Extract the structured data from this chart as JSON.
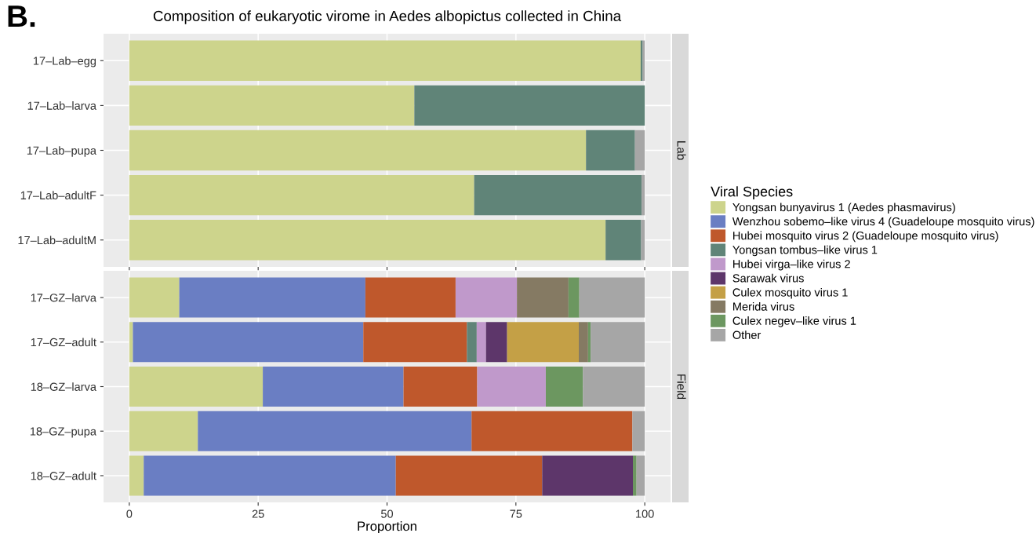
{
  "chart_data": [
    {
      "type": "bar",
      "orientation": "horizontal",
      "stacked": true,
      "title": "Composition of eukaryotic virome in Aedes albopictus collected in China",
      "y2label": "Lab",
      "annotations": [
        "B."
      ],
      "legend_title": "Viral Species",
      "legend": "right",
      "grid": true,
      "tick_labels": "y",
      "xlim": [
        -5,
        105
      ],
      "xticks": [
        0,
        25,
        50,
        75,
        100
      ],
      "categories": [
        "17–Lab–egg",
        "17–Lab–larva",
        "17–Lab–pupa",
        "17–Lab–adultF",
        "17–Lab–adultM"
      ],
      "series": [
        {
          "name": "Yongsan bunyavirus 1 (Aedes phasmavirus)",
          "color": "#cdd48c",
          "values": [
            99.2,
            55.3,
            88.6,
            66.9,
            92.4
          ]
        },
        {
          "name": "Wenzhou sobemo–like virus 4 (Guadeloupe mosquito virus)",
          "color": "#6a7ec3",
          "values": [
            null,
            null,
            null,
            null,
            null
          ]
        },
        {
          "name": "Hubei mosquito virus 2 (Guadeloupe mosquito virus)",
          "color": "#bf582c",
          "values": [
            null,
            null,
            null,
            null,
            null
          ]
        },
        {
          "name": "Yongsan tombus–like virus 1",
          "color": "#608478",
          "values": [
            0.4,
            44.7,
            9.5,
            32.5,
            6.9
          ]
        },
        {
          "name": "Hubei virga–like virus 2",
          "color": "#c099cb",
          "values": [
            null,
            null,
            null,
            null,
            null
          ]
        },
        {
          "name": "Sarawak virus",
          "color": "#5d366a",
          "values": [
            null,
            null,
            null,
            null,
            null
          ]
        },
        {
          "name": "Culex mosquito virus 1",
          "color": "#c4a046",
          "values": [
            null,
            null,
            null,
            null,
            null
          ]
        },
        {
          "name": "Merida virus",
          "color": "#857a63",
          "values": [
            null,
            null,
            null,
            null,
            null
          ]
        },
        {
          "name": "Culex negev–like virus 1",
          "color": "#6c9760",
          "values": [
            null,
            null,
            null,
            null,
            null
          ]
        },
        {
          "name": "Other",
          "color": "#a6a6a6",
          "values": [
            0.4,
            null,
            1.9,
            0.6,
            0.7
          ]
        }
      ]
    },
    {
      "type": "bar",
      "orientation": "horizontal",
      "stacked": true,
      "y2label": "Field",
      "xlabel": "Proportion",
      "grid": true,
      "xlim": [
        -5,
        105
      ],
      "xticks": [
        0,
        25,
        50,
        75,
        100
      ],
      "categories": [
        "17–GZ–larva",
        "17–GZ–adult",
        "18–GZ–larva",
        "18–GZ–pupa",
        "18–GZ–adult"
      ],
      "series": [
        {
          "color": "#cdd48c",
          "values": [
            9.7,
            0.7,
            25.9,
            13.3,
            2.8
          ]
        },
        {
          "color": "#6a7ec3",
          "values": [
            36.1,
            44.7,
            27.3,
            53.1,
            48.9
          ]
        },
        {
          "color": "#bf582c",
          "values": [
            17.5,
            20.1,
            14.3,
            31.2,
            28.4
          ]
        },
        {
          "color": "#608478",
          "values": [
            null,
            1.9,
            null,
            null,
            null
          ]
        },
        {
          "color": "#c099cb",
          "values": [
            11.9,
            1.8,
            13.3,
            null,
            null
          ]
        },
        {
          "color": "#5d366a",
          "values": [
            null,
            4.1,
            null,
            null,
            17.6
          ]
        },
        {
          "color": "#c4a046",
          "values": [
            null,
            13.9,
            null,
            null,
            null
          ]
        },
        {
          "color": "#857a63",
          "values": [
            10.0,
            1.8,
            null,
            null,
            null
          ]
        },
        {
          "color": "#6c9760",
          "values": [
            2.1,
            0.5,
            7.2,
            null,
            0.7
          ]
        },
        {
          "color": "#a6a6a6",
          "values": [
            12.7,
            10.5,
            12.0,
            2.4,
            1.6
          ]
        }
      ]
    }
  ]
}
